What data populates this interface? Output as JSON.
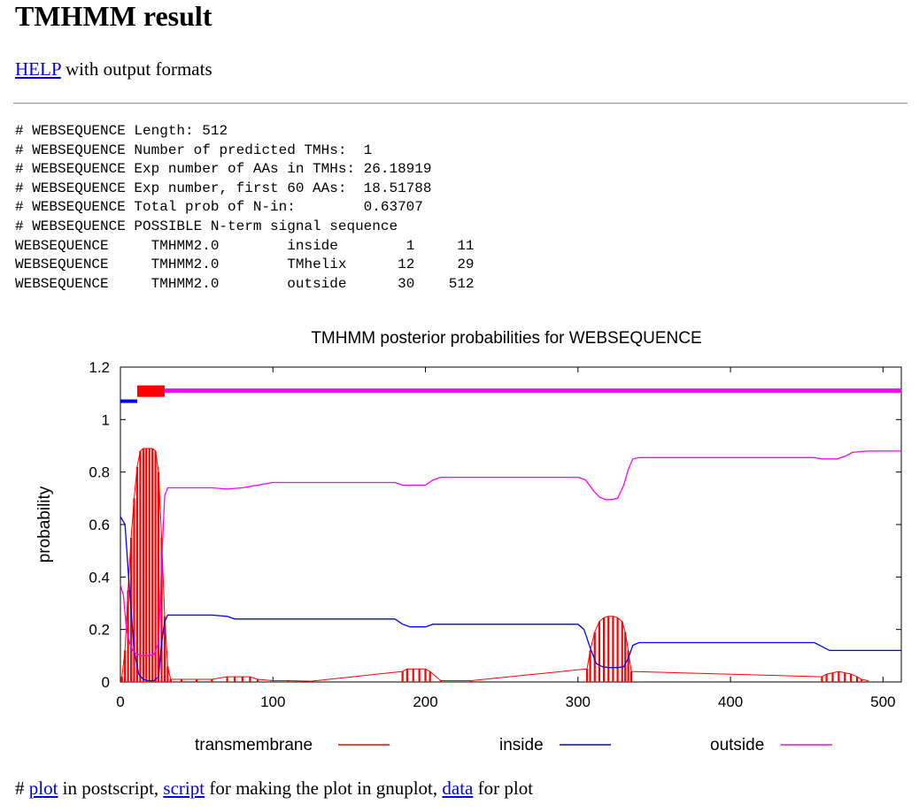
{
  "page": {
    "title": "TMHMM result",
    "help_link": "HELP",
    "help_suffix": " with output formats"
  },
  "summary_lines": [
    "# WEBSEQUENCE Length: 512",
    "# WEBSEQUENCE Number of predicted TMHs:  1",
    "# WEBSEQUENCE Exp number of AAs in TMHs: 26.18919",
    "# WEBSEQUENCE Exp number, first 60 AAs:  18.51788",
    "# WEBSEQUENCE Total prob of N-in:        0.63707",
    "# WEBSEQUENCE POSSIBLE N-term signal sequence"
  ],
  "topology_rows": [
    {
      "seq": "WEBSEQUENCE",
      "method": "TMHMM2.0",
      "region": "inside",
      "start": "1",
      "end": "11"
    },
    {
      "seq": "WEBSEQUENCE",
      "method": "TMHMM2.0",
      "region": "TMhelix",
      "start": "12",
      "end": "29"
    },
    {
      "seq": "WEBSEQUENCE",
      "method": "TMHMM2.0",
      "region": "outside",
      "start": "30",
      "end": "512"
    }
  ],
  "footer": {
    "hash": "# ",
    "plot_link": "plot",
    "text1": " in postscript, ",
    "script_link": "script",
    "text2": " for making the plot in gnuplot, ",
    "data_link": "data",
    "text3": " for plot"
  },
  "chart_data": {
    "type": "line",
    "title": "TMHMM posterior probabilities for WEBSEQUENCE",
    "xlabel": "",
    "ylabel": "probability",
    "xlim": [
      0,
      512
    ],
    "ylim": [
      0,
      1.2
    ],
    "xticks": [
      0,
      100,
      200,
      300,
      400,
      500
    ],
    "yticks": [
      0,
      0.2,
      0.4,
      0.6,
      0.8,
      1,
      1.2
    ],
    "ytick_labels": [
      "0",
      "0.2",
      "0.4",
      "0.6",
      "0.8",
      "1",
      "1.2"
    ],
    "series": [
      {
        "name": "transmembrane",
        "color": "#ff0000",
        "style": "impulses",
        "points": [
          [
            1,
            0.02
          ],
          [
            3,
            0.12
          ],
          [
            5,
            0.35
          ],
          [
            7,
            0.55
          ],
          [
            9,
            0.7
          ],
          [
            11,
            0.82
          ],
          [
            13,
            0.88
          ],
          [
            15,
            0.89
          ],
          [
            17,
            0.89
          ],
          [
            19,
            0.89
          ],
          [
            21,
            0.89
          ],
          [
            23,
            0.88
          ],
          [
            25,
            0.8
          ],
          [
            27,
            0.55
          ],
          [
            29,
            0.25
          ],
          [
            31,
            0.06
          ],
          [
            33,
            0.01
          ],
          [
            40,
            0.01
          ],
          [
            50,
            0.01
          ],
          [
            60,
            0.01
          ],
          [
            70,
            0.02
          ],
          [
            75,
            0.02
          ],
          [
            80,
            0.02
          ],
          [
            85,
            0.02
          ],
          [
            90,
            0.01
          ],
          [
            100,
            0.005
          ],
          [
            110,
            0.005
          ],
          [
            125,
            0.003
          ],
          [
            185,
            0.04
          ],
          [
            188,
            0.05
          ],
          [
            192,
            0.05
          ],
          [
            196,
            0.05
          ],
          [
            200,
            0.05
          ],
          [
            203,
            0.04
          ],
          [
            210,
            0.005
          ],
          [
            230,
            0.005
          ],
          [
            306,
            0.05
          ],
          [
            308,
            0.12
          ],
          [
            311,
            0.19
          ],
          [
            314,
            0.23
          ],
          [
            317,
            0.245
          ],
          [
            320,
            0.25
          ],
          [
            323,
            0.25
          ],
          [
            326,
            0.245
          ],
          [
            329,
            0.23
          ],
          [
            331,
            0.19
          ],
          [
            333,
            0.12
          ],
          [
            335,
            0.04
          ],
          [
            460,
            0.02
          ],
          [
            463,
            0.03
          ],
          [
            467,
            0.035
          ],
          [
            471,
            0.04
          ],
          [
            475,
            0.035
          ],
          [
            479,
            0.03
          ],
          [
            483,
            0.02
          ],
          [
            486,
            0.01
          ],
          [
            490,
            0.005
          ]
        ]
      },
      {
        "name": "inside",
        "color": "#0000ff",
        "style": "line",
        "points": [
          [
            0,
            0.63
          ],
          [
            3,
            0.6
          ],
          [
            6,
            0.35
          ],
          [
            9,
            0.12
          ],
          [
            12,
            0.03
          ],
          [
            15,
            0.01
          ],
          [
            18,
            0.005
          ],
          [
            22,
            0.005
          ],
          [
            25,
            0.02
          ],
          [
            27,
            0.15
          ],
          [
            29,
            0.23
          ],
          [
            31,
            0.255
          ],
          [
            40,
            0.255
          ],
          [
            60,
            0.255
          ],
          [
            70,
            0.25
          ],
          [
            75,
            0.24
          ],
          [
            100,
            0.24
          ],
          [
            150,
            0.24
          ],
          [
            180,
            0.24
          ],
          [
            185,
            0.22
          ],
          [
            190,
            0.21
          ],
          [
            200,
            0.21
          ],
          [
            205,
            0.22
          ],
          [
            210,
            0.22
          ],
          [
            260,
            0.22
          ],
          [
            300,
            0.22
          ],
          [
            304,
            0.2
          ],
          [
            308,
            0.13
          ],
          [
            312,
            0.07
          ],
          [
            316,
            0.058
          ],
          [
            320,
            0.055
          ],
          [
            326,
            0.055
          ],
          [
            330,
            0.058
          ],
          [
            333,
            0.09
          ],
          [
            336,
            0.14
          ],
          [
            340,
            0.15
          ],
          [
            400,
            0.15
          ],
          [
            455,
            0.15
          ],
          [
            460,
            0.135
          ],
          [
            465,
            0.12
          ],
          [
            500,
            0.12
          ],
          [
            512,
            0.12
          ]
        ]
      },
      {
        "name": "outside",
        "color": "#ff00ff",
        "style": "line",
        "points": [
          [
            0,
            0.37
          ],
          [
            2,
            0.33
          ],
          [
            4,
            0.2
          ],
          [
            6,
            0.15
          ],
          [
            8,
            0.12
          ],
          [
            10,
            0.11
          ],
          [
            14,
            0.1
          ],
          [
            18,
            0.1
          ],
          [
            22,
            0.105
          ],
          [
            25,
            0.15
          ],
          [
            27,
            0.45
          ],
          [
            29,
            0.71
          ],
          [
            31,
            0.74
          ],
          [
            40,
            0.74
          ],
          [
            60,
            0.74
          ],
          [
            70,
            0.735
          ],
          [
            80,
            0.74
          ],
          [
            90,
            0.75
          ],
          [
            100,
            0.76
          ],
          [
            150,
            0.76
          ],
          [
            180,
            0.76
          ],
          [
            185,
            0.75
          ],
          [
            200,
            0.75
          ],
          [
            205,
            0.77
          ],
          [
            210,
            0.78
          ],
          [
            250,
            0.78
          ],
          [
            300,
            0.78
          ],
          [
            305,
            0.77
          ],
          [
            310,
            0.73
          ],
          [
            314,
            0.705
          ],
          [
            318,
            0.695
          ],
          [
            322,
            0.695
          ],
          [
            326,
            0.7
          ],
          [
            330,
            0.75
          ],
          [
            333,
            0.81
          ],
          [
            336,
            0.85
          ],
          [
            340,
            0.855
          ],
          [
            400,
            0.855
          ],
          [
            455,
            0.855
          ],
          [
            460,
            0.85
          ],
          [
            470,
            0.85
          ],
          [
            475,
            0.86
          ],
          [
            480,
            0.875
          ],
          [
            490,
            0.88
          ],
          [
            512,
            0.88
          ]
        ]
      }
    ],
    "topology_track": [
      {
        "region": "inside",
        "start": 1,
        "end": 11,
        "color": "#0000ff"
      },
      {
        "region": "TMhelix",
        "start": 12,
        "end": 29,
        "color": "#ff0000"
      },
      {
        "region": "outside",
        "start": 30,
        "end": 512,
        "color": "#ff00ff"
      }
    ],
    "legend_placement": "bottom"
  }
}
